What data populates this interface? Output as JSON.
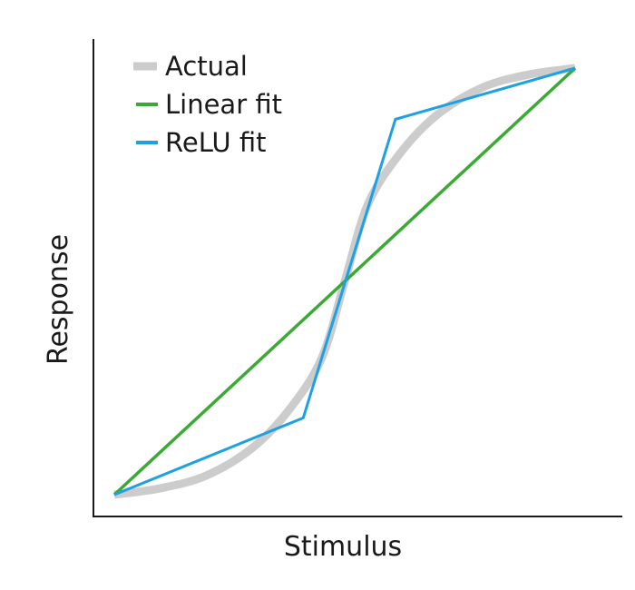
{
  "chart_data": {
    "type": "line",
    "title": "",
    "xlabel": "Stimulus",
    "ylabel": "Response",
    "xlim": [
      0,
      1
    ],
    "ylim": [
      0,
      1
    ],
    "grid": false,
    "ticks": false,
    "legend_position": "top-left",
    "series": [
      {
        "name": "Actual",
        "color": "#cccccc",
        "x": [
          0.0,
          0.1,
          0.2,
          0.3,
          0.38,
          0.45,
          0.5,
          0.55,
          0.62,
          0.7,
          0.8,
          0.9,
          1.0
        ],
        "y": [
          0.0,
          0.015,
          0.045,
          0.11,
          0.2,
          0.32,
          0.5,
          0.68,
          0.8,
          0.89,
          0.955,
          0.985,
          1.0
        ]
      },
      {
        "name": "Linear fit",
        "color": "#3aaa35",
        "x": [
          0.0,
          1.0
        ],
        "y": [
          0.0,
          1.0
        ]
      },
      {
        "name": "ReLU fit",
        "color": "#1da1e2",
        "x": [
          0.0,
          0.41,
          0.61,
          1.0
        ],
        "y": [
          0.0,
          0.18,
          0.88,
          1.0
        ]
      }
    ]
  }
}
